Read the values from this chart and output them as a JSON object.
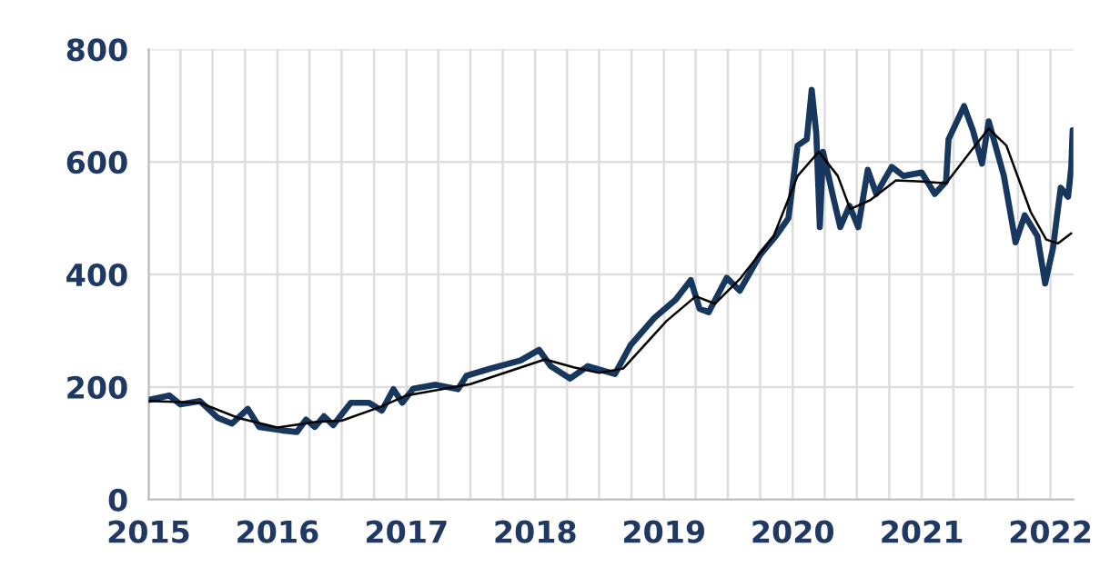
{
  "chart_data": {
    "type": "line",
    "xlim": [
      "2015-01-01",
      "2022-03-07"
    ],
    "xticks": [
      {
        "value": "2015-01-01",
        "label": "2015"
      },
      {
        "value": "2015-04-01",
        "label": null
      },
      {
        "value": "2015-07-01",
        "label": null
      },
      {
        "value": "2015-10-01",
        "label": null
      },
      {
        "value": "2016-01-01",
        "label": "2016"
      },
      {
        "value": "2016-04-01",
        "label": null
      },
      {
        "value": "2016-07-01",
        "label": null
      },
      {
        "value": "2016-10-01",
        "label": null
      },
      {
        "value": "2017-01-01",
        "label": "2017"
      },
      {
        "value": "2017-04-01",
        "label": null
      },
      {
        "value": "2017-07-01",
        "label": null
      },
      {
        "value": "2017-10-01",
        "label": null
      },
      {
        "value": "2018-01-01",
        "label": "2018"
      },
      {
        "value": "2018-04-01",
        "label": null
      },
      {
        "value": "2018-07-01",
        "label": null
      },
      {
        "value": "2018-10-01",
        "label": null
      },
      {
        "value": "2019-01-01",
        "label": "2019"
      },
      {
        "value": "2019-04-01",
        "label": null
      },
      {
        "value": "2019-07-01",
        "label": null
      },
      {
        "value": "2019-10-01",
        "label": null
      },
      {
        "value": "2020-01-01",
        "label": "2020"
      },
      {
        "value": "2020-04-01",
        "label": null
      },
      {
        "value": "2020-07-01",
        "label": null
      },
      {
        "value": "2020-10-01",
        "label": null
      },
      {
        "value": "2021-01-01",
        "label": "2021"
      },
      {
        "value": "2021-04-01",
        "label": null
      },
      {
        "value": "2021-07-01",
        "label": null
      },
      {
        "value": "2021-10-01",
        "label": null
      },
      {
        "value": "2022-01-01",
        "label": "2022"
      }
    ],
    "ylim": [
      0,
      800
    ],
    "yticks": [
      0,
      200,
      400,
      600,
      800
    ],
    "grid": true,
    "series": [
      {
        "color": "#17375e",
        "x": [
          "2015-01-01",
          "2015-02-28",
          "2015-04-01",
          "2015-05-26",
          "2015-07-16",
          "2015-08-25",
          "2015-10-09",
          "2015-11-10",
          "2016-01-12",
          "2016-02-25",
          "2016-03-22",
          "2016-04-16",
          "2016-05-12",
          "2016-06-07",
          "2016-07-27",
          "2016-09-16",
          "2016-10-23",
          "2016-11-25",
          "2016-12-20",
          "2017-01-20",
          "2017-03-25",
          "2017-05-27",
          "2017-06-20",
          "2017-08-28",
          "2017-11-20",
          "2018-01-12",
          "2018-02-14",
          "2018-04-10",
          "2018-05-30",
          "2018-08-15",
          "2018-09-28",
          "2018-12-05",
          "2019-02-03",
          "2019-03-18",
          "2019-04-12",
          "2019-05-08",
          "2019-06-28",
          "2019-08-04",
          "2019-10-01",
          "2019-11-14",
          "2019-12-20",
          "2020-01-15",
          "2020-02-10",
          "2020-02-24",
          "2020-03-08",
          "2020-03-18",
          "2020-03-27",
          "2020-04-27",
          "2020-05-15",
          "2020-06-10",
          "2020-07-05",
          "2020-08-01",
          "2020-08-25",
          "2020-10-08",
          "2020-11-10",
          "2021-01-01",
          "2021-02-07",
          "2021-03-11",
          "2021-03-18",
          "2021-05-01",
          "2021-05-26",
          "2021-06-21",
          "2021-07-10",
          "2021-08-22",
          "2021-09-24",
          "2021-10-20",
          "2021-11-25",
          "2021-12-17",
          "2022-01-08",
          "2022-01-30",
          "2022-02-20",
          "2022-03-01",
          "2022-03-05"
        ],
        "values": [
          177,
          185,
          169,
          175,
          145,
          135,
          161,
          129,
          123,
          120,
          142,
          129,
          148,
          132,
          172,
          172,
          158,
          196,
          172,
          197,
          204,
          196,
          220,
          233,
          247,
          266,
          237,
          215,
          237,
          223,
          274,
          323,
          355,
          390,
          339,
          333,
          394,
          371,
          435,
          468,
          500,
          629,
          640,
          728,
          651,
          484,
          618,
          532,
          484,
          522,
          484,
          586,
          543,
          591,
          575,
          581,
          543,
          565,
          640,
          699,
          656,
          597,
          672,
          575,
          457,
          505,
          468,
          384,
          446,
          554,
          538,
          590,
          656
        ]
      },
      {
        "color": "#000000",
        "x": [
          "2015-01-01",
          "2015-05-26",
          "2015-09-12",
          "2016-01-01",
          "2016-04-20",
          "2016-07-01",
          "2016-10-20",
          "2017-01-01",
          "2017-07-01",
          "2018-01-29",
          "2018-04-20",
          "2018-07-01",
          "2018-09-08",
          "2019-01-08",
          "2019-04-01",
          "2019-05-26",
          "2019-08-06",
          "2019-11-08",
          "2020-01-15",
          "2020-03-15",
          "2020-05-08",
          "2020-06-12",
          "2020-08-08",
          "2020-10-20",
          "2021-01-01",
          "2021-03-11",
          "2021-05-19",
          "2021-07-10",
          "2021-08-29",
          "2021-11-06",
          "2021-12-20",
          "2022-01-22",
          "2022-03-01"
        ],
        "values": [
          175,
          172,
          145,
          128,
          138,
          140,
          165,
          185,
          205,
          249,
          235,
          225,
          233,
          317,
          361,
          348,
          393,
          468,
          575,
          618,
          575,
          516,
          532,
          567,
          565,
          562,
          618,
          659,
          629,
          511,
          462,
          455,
          473
        ]
      }
    ]
  }
}
